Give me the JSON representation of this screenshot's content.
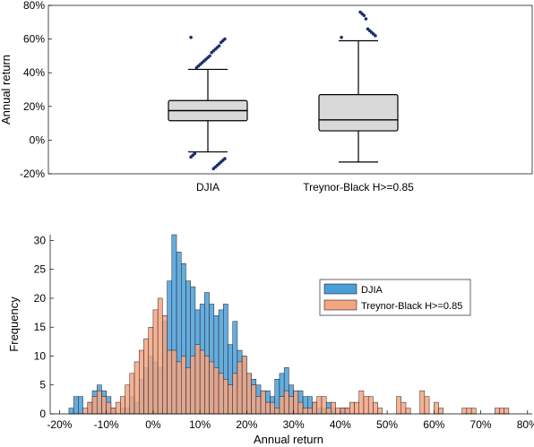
{
  "chart_data": [
    {
      "type": "box",
      "title": "",
      "xlabel": "",
      "ylabel": "Annual return",
      "ylim": [
        -0.2,
        0.8
      ],
      "yticks": [
        -0.2,
        0,
        0.2,
        0.4,
        0.6,
        0.8
      ],
      "ytick_labels": [
        "-20%",
        "0%",
        "20%",
        "40%",
        "60%",
        "80%"
      ],
      "grid": false,
      "boxes": [
        {
          "name": "DJIA",
          "whisker_low": -0.07,
          "q1": 0.115,
          "median": 0.175,
          "q3": 0.235,
          "whisker_high": 0.42,
          "outliers": [
            0.61,
            0.6,
            0.59,
            0.58,
            0.56,
            0.55,
            0.54,
            0.53,
            0.52,
            0.5,
            0.49,
            0.48,
            0.47,
            0.46,
            0.45,
            0.44,
            0.43,
            -0.08,
            -0.09,
            -0.1,
            -0.11,
            -0.12,
            -0.13,
            -0.14,
            -0.15,
            -0.16,
            -0.17
          ]
        },
        {
          "name": "Treynor-Black H>=0.85",
          "whisker_low": -0.13,
          "q1": 0.055,
          "median": 0.12,
          "q3": 0.27,
          "whisker_high": 0.59,
          "outliers": [
            0.61,
            0.62,
            0.63,
            0.64,
            0.65,
            0.66,
            0.72,
            0.74,
            0.75,
            0.76
          ]
        }
      ]
    },
    {
      "type": "histogram",
      "title": "",
      "xlabel": "Annual return",
      "ylabel": "Frequency",
      "xlim": [
        -0.22,
        0.81
      ],
      "ylim": [
        0,
        31
      ],
      "xticks": [
        -0.2,
        -0.1,
        0,
        0.1,
        0.2,
        0.3,
        0.4,
        0.5,
        0.6,
        0.7,
        0.8
      ],
      "xtick_labels": [
        "-20%",
        "-10%",
        "0%",
        "10%",
        "20%",
        "30%",
        "40%",
        "50%",
        "60%",
        "70%",
        "80%"
      ],
      "yticks": [
        0,
        5,
        10,
        15,
        20,
        25,
        30
      ],
      "ytick_labels": [
        "0",
        "5",
        "10",
        "15",
        "20",
        "25",
        "30"
      ],
      "bin_start": -0.18,
      "bin_width": 0.01,
      "legend_position": "right",
      "series": [
        {
          "name": "DJIA",
          "color": "#4a9fd9",
          "counts": [
            1,
            3,
            3,
            0,
            2,
            4,
            5,
            4,
            3,
            1,
            0,
            1,
            1,
            3,
            2,
            6,
            8,
            10,
            9,
            8,
            16,
            23,
            31,
            28,
            26,
            23,
            22,
            18,
            19,
            21,
            19,
            17,
            18,
            19,
            12,
            16,
            11,
            10,
            7,
            6,
            5,
            4,
            4,
            3,
            6,
            7,
            8,
            5,
            4,
            4,
            3,
            3,
            2,
            1,
            1,
            2,
            1,
            0,
            1,
            1,
            0,
            0,
            0,
            0,
            0,
            0,
            0,
            0,
            0,
            0,
            0,
            0,
            0,
            0,
            0,
            0,
            0,
            0,
            0,
            0,
            0,
            0,
            0,
            0,
            0,
            0,
            0,
            0,
            0,
            0,
            0,
            0,
            0,
            0,
            0,
            0,
            0,
            0,
            0,
            0
          ]
        },
        {
          "name": "Treynor-Black H>=0.85",
          "color": "#f4a582",
          "counts": [
            0,
            0,
            0,
            1,
            2,
            3,
            4,
            3,
            2,
            1,
            2,
            3,
            5,
            7,
            9,
            11,
            13,
            15,
            18,
            20,
            17,
            11,
            11,
            9,
            10,
            8,
            10,
            12,
            11,
            10,
            9,
            8,
            7,
            6,
            5,
            7,
            9,
            10,
            7,
            5,
            3,
            4,
            2,
            2,
            1,
            3,
            4,
            3,
            4,
            2,
            1,
            1,
            2,
            3,
            3,
            1,
            2,
            1,
            1,
            1,
            2,
            2,
            4,
            3,
            3,
            2,
            1,
            0,
            0,
            0,
            3,
            2,
            1,
            0,
            0,
            4,
            3,
            0,
            2,
            1,
            0,
            0,
            0,
            0,
            1,
            1,
            1,
            0,
            0,
            0,
            0,
            1,
            1,
            1,
            0,
            0,
            0,
            0,
            0,
            0
          ]
        }
      ]
    }
  ]
}
